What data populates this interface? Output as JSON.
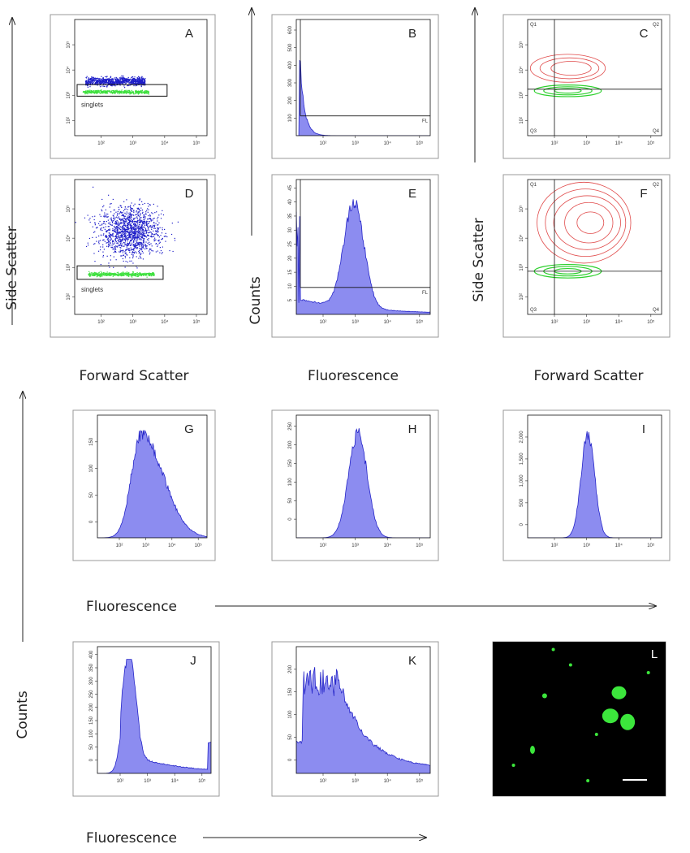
{
  "axis_labels": {
    "side_scatter": "Side Scatter",
    "counts": "Counts",
    "forward_scatter": "Forward Scatter",
    "fluorescence": "Fluorescence"
  },
  "x_ticks": [
    "10²",
    "10³",
    "10⁴",
    "10⁵"
  ],
  "panels": [
    {
      "letter": "A",
      "gate": "singlets",
      "y_ticks": [
        "10²",
        "10³",
        "10⁴",
        "10⁵"
      ]
    },
    {
      "letter": "B",
      "gate": "FL",
      "y_ticks": [
        "100",
        "200",
        "300",
        "400",
        "500",
        "600"
      ]
    },
    {
      "letter": "C",
      "quadrants": [
        "Q1",
        "Q2",
        "Q3",
        "Q4"
      ],
      "y_ticks": [
        "10²",
        "10³",
        "10⁴",
        "10⁵"
      ]
    },
    {
      "letter": "D",
      "gate": "singlets",
      "y_ticks": [
        "10²",
        "10³",
        "10⁴",
        "10⁵"
      ]
    },
    {
      "letter": "E",
      "gate": "FL",
      "y_ticks": [
        "5",
        "10",
        "15",
        "20",
        "25",
        "30",
        "35",
        "40",
        "45"
      ]
    },
    {
      "letter": "F",
      "quadrants": [
        "Q1",
        "Q2",
        "Q3",
        "Q4"
      ],
      "y_ticks": [
        "10²",
        "10³",
        "10⁴",
        "10⁵"
      ]
    },
    {
      "letter": "G",
      "y_ticks": [
        "0",
        "50",
        "100",
        "150"
      ]
    },
    {
      "letter": "H",
      "y_ticks": [
        "0",
        "50",
        "100",
        "150",
        "200",
        "250"
      ]
    },
    {
      "letter": "I",
      "y_ticks": [
        "0",
        "500",
        "1,000",
        "1,500",
        "2,000"
      ]
    },
    {
      "letter": "J",
      "y_ticks": [
        "0",
        "50",
        "100",
        "150",
        "200",
        "250",
        "300",
        "350",
        "400"
      ]
    },
    {
      "letter": "K",
      "y_ticks": [
        "0",
        "50",
        "100",
        "150",
        "200"
      ]
    },
    {
      "letter": "L"
    }
  ]
}
